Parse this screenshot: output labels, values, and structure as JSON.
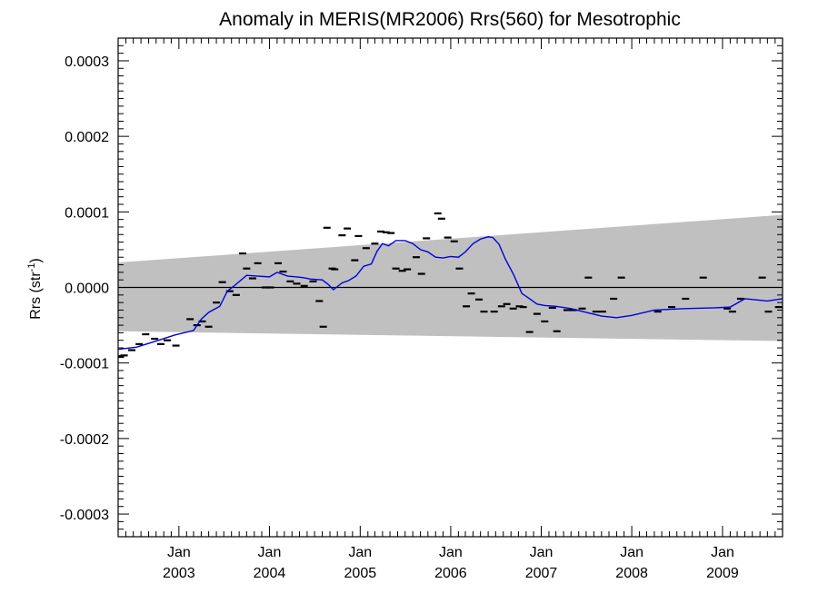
{
  "chart_data": {
    "type": "line",
    "title": "Anomaly in MERIS(MR2006) Rrs(560) for Mesotrophic",
    "ylabel": "Rrs (str",
    "ylabel_superscript": "-1",
    "ylabel_suffix": ")",
    "xlabel": "",
    "ylim": [
      -0.00033,
      0.00033
    ],
    "xlim": [
      "2002-05-01",
      "2009-08-31"
    ],
    "y_ticks": [
      -0.0003,
      -0.0002,
      -0.0001,
      0.0,
      0.0001,
      0.0002,
      0.0003
    ],
    "y_tick_labels": [
      "-0.0003",
      "-0.0002",
      "-0.0001",
      "0.0000",
      "0.0001",
      "0.0002",
      "0.0003"
    ],
    "x_ticks": [
      {
        "date": "2003-01-01",
        "month": "Jan",
        "year": "2003"
      },
      {
        "date": "2004-01-01",
        "month": "Jan",
        "year": "2004"
      },
      {
        "date": "2005-01-01",
        "month": "Jan",
        "year": "2005"
      },
      {
        "date": "2006-01-01",
        "month": "Jan",
        "year": "2006"
      },
      {
        "date": "2007-01-01",
        "month": "Jan",
        "year": "2007"
      },
      {
        "date": "2008-01-01",
        "month": "Jan",
        "year": "2008"
      },
      {
        "date": "2009-01-01",
        "month": "Jan",
        "year": "2009"
      }
    ],
    "zero_line": 0.0,
    "confidence_band": {
      "x": [
        "2002-05-01",
        "2009-08-31"
      ],
      "upper": [
        3.3e-05,
        9.6e-05
      ],
      "lower": [
        -5.8e-05,
        -7.1e-05
      ],
      "color": "#c0c0c0"
    },
    "series": [
      {
        "kind": "points",
        "color": "#000000",
        "x": [
          "2002-05-10",
          "2002-05-25",
          "2002-06-25",
          "2002-07-25",
          "2002-08-20",
          "2002-09-25",
          "2002-10-20",
          "2002-11-15",
          "2002-12-20",
          "2003-02-15",
          "2003-03-15",
          "2003-04-05",
          "2003-05-01",
          "2003-06-01",
          "2003-06-25",
          "2003-07-25",
          "2003-08-20",
          "2003-09-15",
          "2003-10-01",
          "2003-10-25",
          "2003-11-15",
          "2003-12-15",
          "2004-01-05",
          "2004-02-05",
          "2004-02-25",
          "2004-03-25",
          "2004-04-20",
          "2004-05-20",
          "2004-06-25",
          "2004-07-20",
          "2004-08-05",
          "2004-08-20",
          "2004-09-10",
          "2004-09-20",
          "2004-10-20",
          "2004-11-10",
          "2004-12-10",
          "2004-12-25",
          "2005-01-25",
          "2005-03-01",
          "2005-03-25",
          "2005-04-15",
          "2005-05-05",
          "2005-05-25",
          "2005-06-20",
          "2005-07-10",
          "2005-08-15",
          "2005-09-05",
          "2005-09-25",
          "2005-11-10",
          "2005-11-25",
          "2005-12-20",
          "2006-01-15",
          "2006-02-05",
          "2006-03-05",
          "2006-03-25",
          "2006-04-25",
          "2006-05-15",
          "2006-06-25",
          "2006-07-25",
          "2006-08-15",
          "2006-09-10",
          "2006-10-05",
          "2006-10-20",
          "2006-11-15",
          "2006-12-15",
          "2007-01-15",
          "2007-02-15",
          "2007-03-05",
          "2007-04-15",
          "2007-05-10",
          "2007-06-15",
          "2007-07-10",
          "2007-08-10",
          "2007-09-05",
          "2007-10-20",
          "2007-11-20",
          "2008-04-15",
          "2008-06-10",
          "2008-08-05",
          "2008-10-15",
          "2009-01-20",
          "2009-02-10",
          "2009-03-15",
          "2009-06-10",
          "2009-07-05",
          "2009-08-15"
        ],
        "y": [
          -9.2e-05,
          -9e-05,
          -8.3e-05,
          -7.5e-05,
          -6.2e-05,
          -6.8e-05,
          -7.5e-05,
          -7e-05,
          -7.7e-05,
          -4.2e-05,
          -5e-05,
          -4.5e-05,
          -5.2e-05,
          -2e-05,
          7e-06,
          -5e-06,
          -1e-05,
          4.5e-05,
          2.5e-05,
          1.2e-05,
          3.2e-05,
          0.0,
          0.0,
          3.2e-05,
          2.1e-05,
          8e-06,
          5e-06,
          2e-06,
          8e-06,
          -1.8e-05,
          -5.2e-05,
          7.9e-05,
          2.5e-05,
          2.4e-05,
          6.9e-05,
          7.8e-05,
          3.6e-05,
          6.8e-05,
          5.2e-05,
          5.8e-05,
          7.4e-05,
          7.3e-05,
          7.2e-05,
          2.5e-05,
          2.2e-05,
          2.4e-05,
          4e-05,
          1.8e-05,
          6.5e-05,
          9.8e-05,
          9.1e-05,
          6.6e-05,
          6.1e-05,
          2.5e-05,
          -2.5e-05,
          -8e-06,
          -1.6e-05,
          -3.2e-05,
          -3.2e-05,
          -2.5e-05,
          -2.2e-05,
          -2.8e-05,
          -2.5e-05,
          -2.6e-05,
          -5.9e-05,
          -3.5e-05,
          -4.5e-05,
          -2.7e-05,
          -5.8e-05,
          -3e-05,
          -3e-05,
          -2.8e-05,
          1.3e-05,
          -3.2e-05,
          -3.2e-05,
          -1.5e-05,
          1.3e-05,
          -3.2e-05,
          -2.6e-05,
          -1.5e-05,
          1.3e-05,
          -2.8e-05,
          -3.2e-05,
          -1.5e-05,
          1.3e-05,
          -3.2e-05,
          -2.6e-05
        ],
        "_note_removed": ""
      },
      {
        "kind": "line",
        "color": "#0000dd",
        "x": [
          "2002-05-01",
          "2002-07-15",
          "2002-10-01",
          "2002-12-15",
          "2003-03-01",
          "2003-04-01",
          "2003-05-01",
          "2003-06-15",
          "2003-07-15",
          "2003-08-15",
          "2003-10-01",
          "2003-11-15",
          "2004-01-01",
          "2004-02-01",
          "2004-03-15",
          "2004-04-15",
          "2004-05-15",
          "2004-06-15",
          "2004-08-01",
          "2004-08-25",
          "2004-09-15",
          "2004-10-20",
          "2004-11-15",
          "2004-12-15",
          "2005-01-15",
          "2005-02-15",
          "2005-03-10",
          "2005-04-01",
          "2005-04-25",
          "2005-05-25",
          "2005-07-01",
          "2005-08-01",
          "2005-09-01",
          "2005-10-01",
          "2005-11-01",
          "2005-12-01",
          "2006-01-01",
          "2006-02-01",
          "2006-03-01",
          "2006-04-01",
          "2006-05-01",
          "2006-06-01",
          "2006-06-20",
          "2006-07-15",
          "2006-08-10",
          "2006-09-10",
          "2006-10-15",
          "2006-11-15",
          "2006-12-15",
          "2007-01-15",
          "2007-03-01",
          "2007-05-01",
          "2007-07-01",
          "2007-09-01",
          "2007-11-01",
          "2008-01-01",
          "2008-04-01",
          "2008-08-01",
          "2008-12-01",
          "2009-02-01",
          "2009-04-01",
          "2009-07-01",
          "2009-08-31"
        ],
        "y": [
          -8.2e-05,
          -7.9e-05,
          -7.1e-05,
          -6.3e-05,
          -5.7e-05,
          -4.2e-05,
          -3.3e-05,
          -2.5e-05,
          -5e-06,
          3e-06,
          1.6e-05,
          1.5e-05,
          1.4e-05,
          2e-05,
          1.5e-05,
          1.4e-05,
          1.3e-05,
          1.1e-05,
          1e-05,
          4e-06,
          -3e-06,
          6e-06,
          9e-06,
          1.5e-05,
          2.8e-05,
          3.1e-05,
          4.8e-05,
          5.8e-05,
          5.5e-05,
          6.2e-05,
          6.2e-05,
          5.8e-05,
          5e-05,
          4.7e-05,
          4e-05,
          3.9e-05,
          4.1e-05,
          4e-05,
          4.7e-05,
          5.8e-05,
          6.4e-05,
          6.7e-05,
          6.6e-05,
          5.7e-05,
          3.7e-05,
          1.8e-05,
          -8e-06,
          -1.5e-05,
          -2.2e-05,
          -2.4e-05,
          -2.5e-05,
          -2.8e-05,
          -3.3e-05,
          -3.8e-05,
          -4e-05,
          -3.7e-05,
          -3e-05,
          -2.8e-05,
          -2.7e-05,
          -2.6e-05,
          -1.5e-05,
          -1.8e-05,
          -1.5e-05
        ]
      }
    ]
  }
}
